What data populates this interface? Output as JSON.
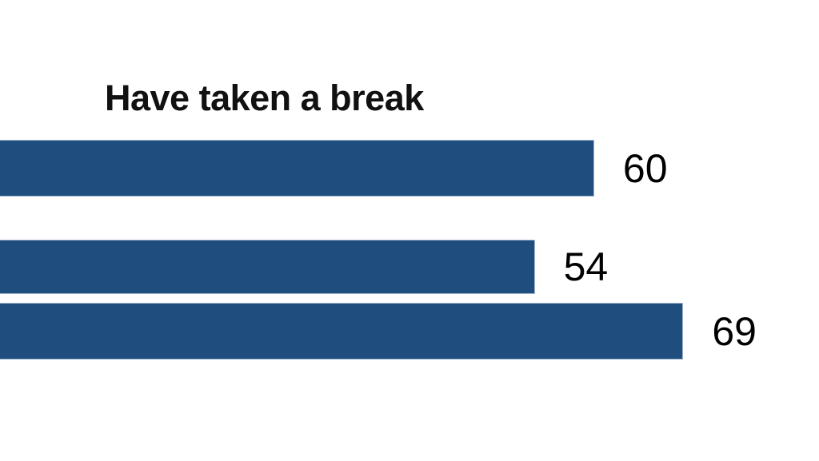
{
  "chart_data": {
    "type": "bar",
    "orientation": "horizontal",
    "title": "Have taken a break",
    "values": [
      60,
      54,
      69
    ],
    "data_labels": [
      "60",
      "54",
      "69"
    ],
    "xlim": [
      0,
      82.7
    ],
    "grid": false,
    "legend": false,
    "axis_labels_visible": false,
    "bar_color": "#1E4D7E",
    "bar_border_color": "#9fb4cd",
    "title_color": "#111111",
    "value_label_color": "#000000",
    "background_color": "#ffffff"
  }
}
